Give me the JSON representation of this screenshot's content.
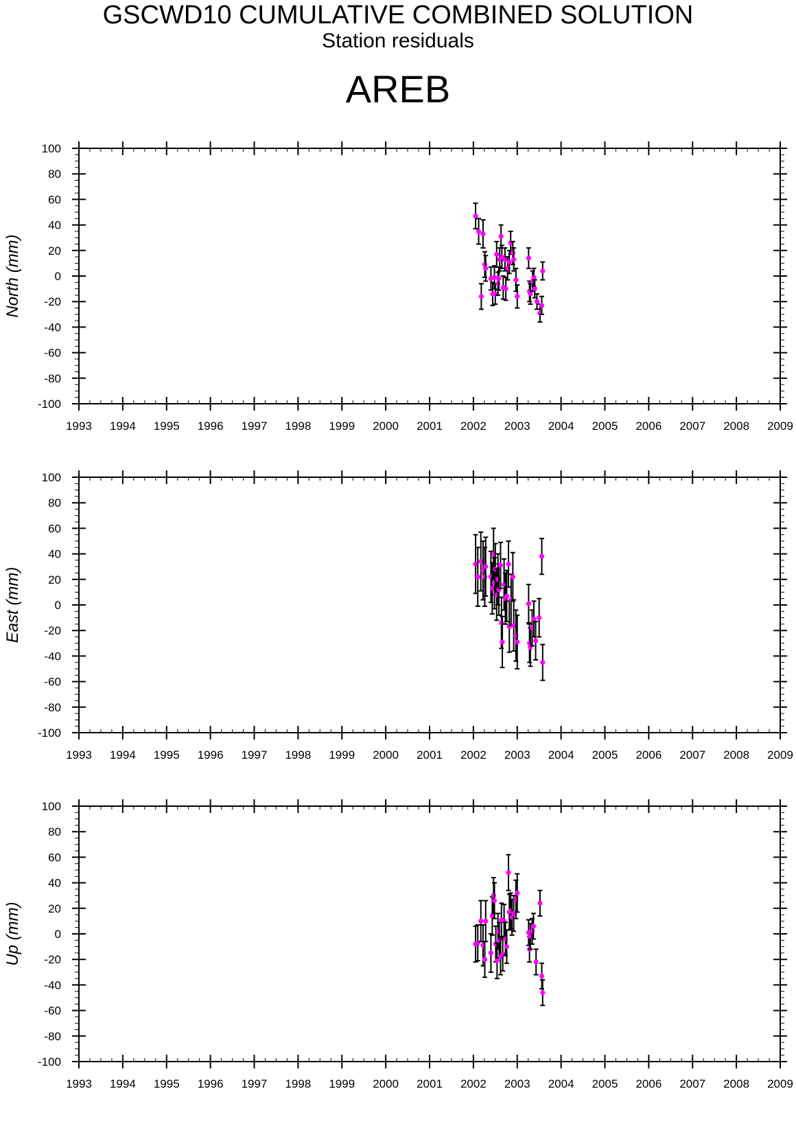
{
  "header": {
    "title": "GSCWD10 CUMULATIVE COMBINED SOLUTION",
    "subtitle": "Station residuals",
    "station": "AREB"
  },
  "colors": {
    "point": "#ff00ff",
    "errorbar": "#000000",
    "axes": "#000000"
  },
  "chart_data": [
    {
      "type": "scatter",
      "title": "",
      "xlabel": "",
      "ylabel": "North (mm)",
      "xlim": [
        1993,
        2009
      ],
      "ylim": [
        -100,
        100
      ],
      "xticks": [
        "1993",
        "1994",
        "1995",
        "1996",
        "1997",
        "1998",
        "1999",
        "2000",
        "2001",
        "2002",
        "2003",
        "2004",
        "2005",
        "2006",
        "2007",
        "2008",
        "2009"
      ],
      "yticks": [
        "100",
        "80",
        "60",
        "40",
        "20",
        "0",
        "-20",
        "-40",
        "-60",
        "-80",
        "-100"
      ],
      "grid": false,
      "points": [
        {
          "x": 2002.05,
          "y": 47,
          "err": 10
        },
        {
          "x": 2002.12,
          "y": 35,
          "err": 10
        },
        {
          "x": 2002.18,
          "y": -16,
          "err": 10
        },
        {
          "x": 2002.22,
          "y": 33,
          "err": 11
        },
        {
          "x": 2002.26,
          "y": 9,
          "err": 10
        },
        {
          "x": 2002.28,
          "y": 6,
          "err": 10
        },
        {
          "x": 2002.4,
          "y": -2,
          "err": 9
        },
        {
          "x": 2002.44,
          "y": -14,
          "err": 9
        },
        {
          "x": 2002.48,
          "y": -1,
          "err": 9
        },
        {
          "x": 2002.5,
          "y": -14,
          "err": 8
        },
        {
          "x": 2002.53,
          "y": 17,
          "err": 10
        },
        {
          "x": 2002.56,
          "y": -6,
          "err": 9
        },
        {
          "x": 2002.58,
          "y": -2,
          "err": 9
        },
        {
          "x": 2002.6,
          "y": 13,
          "err": 9
        },
        {
          "x": 2002.63,
          "y": 31,
          "err": 9
        },
        {
          "x": 2002.65,
          "y": 15,
          "err": 9
        },
        {
          "x": 2002.68,
          "y": -9,
          "err": 9
        },
        {
          "x": 2002.72,
          "y": 13,
          "err": 9
        },
        {
          "x": 2002.74,
          "y": -10,
          "err": 9
        },
        {
          "x": 2002.78,
          "y": 6,
          "err": 9
        },
        {
          "x": 2002.82,
          "y": 11,
          "err": 9
        },
        {
          "x": 2002.85,
          "y": 26,
          "err": 9
        },
        {
          "x": 2002.9,
          "y": 18,
          "err": 9
        },
        {
          "x": 2002.92,
          "y": 13,
          "err": 9
        },
        {
          "x": 2002.97,
          "y": -3,
          "err": 9
        },
        {
          "x": 2003.0,
          "y": -16,
          "err": 9
        },
        {
          "x": 2003.26,
          "y": 14,
          "err": 8
        },
        {
          "x": 2003.28,
          "y": -12,
          "err": 8
        },
        {
          "x": 2003.3,
          "y": -14,
          "err": 8
        },
        {
          "x": 2003.35,
          "y": -4,
          "err": 8
        },
        {
          "x": 2003.38,
          "y": -1,
          "err": 7
        },
        {
          "x": 2003.4,
          "y": -10,
          "err": 7
        },
        {
          "x": 2003.45,
          "y": -20,
          "err": 6
        },
        {
          "x": 2003.52,
          "y": -29,
          "err": 7
        },
        {
          "x": 2003.56,
          "y": -23,
          "err": 7
        },
        {
          "x": 2003.58,
          "y": 4,
          "err": 7
        }
      ]
    },
    {
      "type": "scatter",
      "title": "",
      "xlabel": "",
      "ylabel": "East (mm)",
      "xlim": [
        1993,
        2009
      ],
      "ylim": [
        -100,
        100
      ],
      "xticks": [
        "1993",
        "1994",
        "1995",
        "1996",
        "1997",
        "1998",
        "1999",
        "2000",
        "2001",
        "2002",
        "2003",
        "2004",
        "2005",
        "2006",
        "2007",
        "2008",
        "2009"
      ],
      "yticks": [
        "100",
        "80",
        "60",
        "40",
        "20",
        "0",
        "-20",
        "-40",
        "-60",
        "-80",
        "-100"
      ],
      "grid": false,
      "points": [
        {
          "x": 2002.05,
          "y": 32,
          "err": 23
        },
        {
          "x": 2002.1,
          "y": 22,
          "err": 23
        },
        {
          "x": 2002.17,
          "y": 34,
          "err": 23
        },
        {
          "x": 2002.22,
          "y": 27,
          "err": 23
        },
        {
          "x": 2002.26,
          "y": 22,
          "err": 23
        },
        {
          "x": 2002.28,
          "y": 30,
          "err": 23
        },
        {
          "x": 2002.4,
          "y": 22,
          "err": 20
        },
        {
          "x": 2002.43,
          "y": 13,
          "err": 20
        },
        {
          "x": 2002.46,
          "y": 40,
          "err": 20
        },
        {
          "x": 2002.48,
          "y": 17,
          "err": 20
        },
        {
          "x": 2002.5,
          "y": 28,
          "err": 20
        },
        {
          "x": 2002.53,
          "y": 8,
          "err": 20
        },
        {
          "x": 2002.56,
          "y": 20,
          "err": 20
        },
        {
          "x": 2002.58,
          "y": 12,
          "err": 20
        },
        {
          "x": 2002.62,
          "y": 31,
          "err": 18
        },
        {
          "x": 2002.64,
          "y": -14,
          "err": 20
        },
        {
          "x": 2002.66,
          "y": -29,
          "err": 20
        },
        {
          "x": 2002.7,
          "y": 16,
          "err": 20
        },
        {
          "x": 2002.73,
          "y": 5,
          "err": 20
        },
        {
          "x": 2002.76,
          "y": 7,
          "err": 20
        },
        {
          "x": 2002.8,
          "y": 32,
          "err": 18
        },
        {
          "x": 2002.82,
          "y": -17,
          "err": 20
        },
        {
          "x": 2002.86,
          "y": 4,
          "err": 20
        },
        {
          "x": 2002.9,
          "y": 22,
          "err": 19
        },
        {
          "x": 2002.92,
          "y": -16,
          "err": 20
        },
        {
          "x": 2002.97,
          "y": -24,
          "err": 20
        },
        {
          "x": 2003.0,
          "y": -29,
          "err": 21
        },
        {
          "x": 2003.26,
          "y": 1,
          "err": 15
        },
        {
          "x": 2003.28,
          "y": -30,
          "err": 15
        },
        {
          "x": 2003.3,
          "y": -33,
          "err": 15
        },
        {
          "x": 2003.34,
          "y": -18,
          "err": 14
        },
        {
          "x": 2003.38,
          "y": -11,
          "err": 14
        },
        {
          "x": 2003.42,
          "y": -28,
          "err": 15
        },
        {
          "x": 2003.5,
          "y": -10,
          "err": 15
        },
        {
          "x": 2003.56,
          "y": 38,
          "err": 14
        },
        {
          "x": 2003.58,
          "y": -45,
          "err": 14
        }
      ]
    },
    {
      "type": "scatter",
      "title": "",
      "xlabel": "",
      "ylabel": "Up (mm)",
      "xlim": [
        1993,
        2009
      ],
      "ylim": [
        -100,
        100
      ],
      "xticks": [
        "1993",
        "1994",
        "1995",
        "1996",
        "1997",
        "1998",
        "1999",
        "2000",
        "2001",
        "2002",
        "2003",
        "2004",
        "2005",
        "2006",
        "2007",
        "2008",
        "2009"
      ],
      "yticks": [
        "100",
        "80",
        "60",
        "40",
        "20",
        "0",
        "-20",
        "-40",
        "-60",
        "-80",
        "-100"
      ],
      "grid": false,
      "points": [
        {
          "x": 2002.05,
          "y": -8,
          "err": 14
        },
        {
          "x": 2002.1,
          "y": -7,
          "err": 14
        },
        {
          "x": 2002.17,
          "y": 10,
          "err": 16
        },
        {
          "x": 2002.22,
          "y": -9,
          "err": 16
        },
        {
          "x": 2002.26,
          "y": -20,
          "err": 14
        },
        {
          "x": 2002.28,
          "y": 10,
          "err": 16
        },
        {
          "x": 2002.4,
          "y": -15,
          "err": 15
        },
        {
          "x": 2002.43,
          "y": 14,
          "err": 15
        },
        {
          "x": 2002.46,
          "y": 30,
          "err": 14
        },
        {
          "x": 2002.48,
          "y": 26,
          "err": 14
        },
        {
          "x": 2002.51,
          "y": -8,
          "err": 14
        },
        {
          "x": 2002.54,
          "y": -21,
          "err": 14
        },
        {
          "x": 2002.56,
          "y": 2,
          "err": 14
        },
        {
          "x": 2002.59,
          "y": -5,
          "err": 14
        },
        {
          "x": 2002.62,
          "y": -18,
          "err": 14
        },
        {
          "x": 2002.64,
          "y": 11,
          "err": 13
        },
        {
          "x": 2002.67,
          "y": -16,
          "err": 13
        },
        {
          "x": 2002.7,
          "y": 10,
          "err": 13
        },
        {
          "x": 2002.73,
          "y": -4,
          "err": 13
        },
        {
          "x": 2002.76,
          "y": -10,
          "err": 13
        },
        {
          "x": 2002.8,
          "y": 48,
          "err": 14
        },
        {
          "x": 2002.82,
          "y": 17,
          "err": 14
        },
        {
          "x": 2002.85,
          "y": 18,
          "err": 14
        },
        {
          "x": 2002.88,
          "y": 13,
          "err": 14
        },
        {
          "x": 2002.92,
          "y": 16,
          "err": 14
        },
        {
          "x": 2002.97,
          "y": 27,
          "err": 15
        },
        {
          "x": 2003.0,
          "y": 32,
          "err": 15
        },
        {
          "x": 2003.26,
          "y": 1,
          "err": 10
        },
        {
          "x": 2003.28,
          "y": -12,
          "err": 10
        },
        {
          "x": 2003.3,
          "y": -2,
          "err": 10
        },
        {
          "x": 2003.34,
          "y": 2,
          "err": 10
        },
        {
          "x": 2003.37,
          "y": 6,
          "err": 10
        },
        {
          "x": 2003.43,
          "y": -22,
          "err": 10
        },
        {
          "x": 2003.52,
          "y": 24,
          "err": 10
        },
        {
          "x": 2003.56,
          "y": -33,
          "err": 10
        },
        {
          "x": 2003.58,
          "y": -46,
          "err": 10
        }
      ]
    }
  ]
}
